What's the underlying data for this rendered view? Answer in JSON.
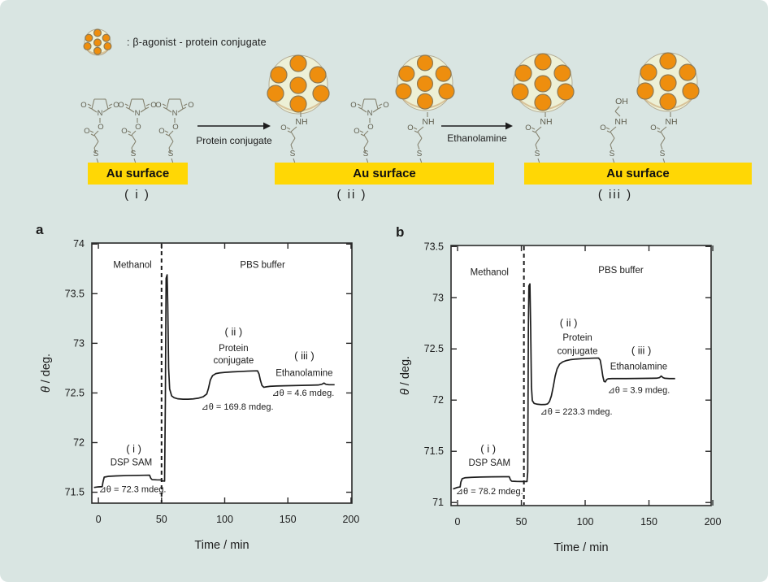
{
  "colors": {
    "background": "#d9e5e2",
    "au_surface": "#ffd705",
    "protein_dot": "#ee8e0e",
    "protein_blob": "#edf0d6",
    "curve": "#1c1c1c"
  },
  "scheme": {
    "legend": {
      "label": ": β-agonist - protein conjugate",
      "icon": "protein-conjugate-cluster-icon"
    },
    "arrows": [
      {
        "label": "Protein conjugate"
      },
      {
        "label": "Ethanolamine"
      }
    ],
    "stages": [
      {
        "id": "i",
        "caption": "( i )",
        "surface_label": "Au surface"
      },
      {
        "id": "ii",
        "caption": "( ii )",
        "surface_label": "Au surface"
      },
      {
        "id": "iii",
        "caption": "( iii )",
        "surface_label": "Au surface"
      }
    ],
    "atom_labels": {
      "oxygen": "O",
      "nitrogen": "N",
      "sulfur": "S",
      "amide": "NH",
      "hydroxyl": "OH"
    }
  },
  "chart_data": [
    {
      "type": "line",
      "panel": "a",
      "xlabel": "Time / min",
      "ylabel": "θ / deg.",
      "xlim": [
        -5.2,
        200.7
      ],
      "ylim": [
        71.39,
        74.01
      ],
      "xticks": [
        0,
        50,
        100,
        150,
        200
      ],
      "xtick_labels": [
        "0",
        "50",
        "100",
        "150",
        "200"
      ],
      "yticks": [
        71.5,
        72,
        72.5,
        73,
        73.5,
        74
      ],
      "ytick_labels": [
        "71.5",
        "72",
        "72.5",
        "73",
        "73.5",
        "74"
      ],
      "grid": false,
      "vline_x": 50,
      "annotations": [
        {
          "text": "Methanol",
          "t": 27,
          "v": 73.76,
          "size": 11.5
        },
        {
          "text": "PBS buffer",
          "t": 130,
          "v": 73.76,
          "size": 11.5
        },
        {
          "text": "( ii )",
          "t": 107,
          "v": 73.08,
          "size": 13
        },
        {
          "text": "Protein",
          "t": 107,
          "v": 72.92,
          "size": 11.5
        },
        {
          "text": "conjugate",
          "t": 107,
          "v": 72.8,
          "size": 11.5
        },
        {
          "text": "( iii )",
          "t": 163,
          "v": 72.84,
          "size": 13
        },
        {
          "text": "Ethanolamine",
          "t": 163,
          "v": 72.67,
          "size": 11.5
        },
        {
          "text": "⊿θ = 4.6 mdeg.",
          "t": 162,
          "v": 72.47,
          "size": 11
        },
        {
          "text": "⊿θ = 169.8 mdeg.",
          "t": 110,
          "v": 72.33,
          "size": 11
        },
        {
          "text": "( i )",
          "t": 28,
          "v": 71.9,
          "size": 13
        },
        {
          "text": "DSP SAM",
          "t": 26,
          "v": 71.77,
          "size": 11.5
        },
        {
          "text": "⊿θ = 72.3 mdeg.",
          "t": 27,
          "v": 71.5,
          "size": 11
        }
      ],
      "points": [
        [
          -3.5,
          71.548
        ],
        [
          0,
          71.554
        ],
        [
          3,
          71.556
        ],
        [
          3.6,
          71.6
        ],
        [
          4.6,
          71.652
        ],
        [
          8,
          71.66
        ],
        [
          14,
          71.664
        ],
        [
          22,
          71.668
        ],
        [
          32,
          71.67
        ],
        [
          40.5,
          71.672
        ],
        [
          41.5,
          71.64
        ],
        [
          42.5,
          71.627
        ],
        [
          46,
          71.625
        ],
        [
          50,
          71.624
        ],
        [
          50.8,
          71.614
        ],
        [
          52.4,
          71.612
        ],
        [
          53,
          72.4
        ],
        [
          53.6,
          73.655
        ],
        [
          54.4,
          73.69
        ],
        [
          54.9,
          73.4
        ],
        [
          55.6,
          72.75
        ],
        [
          56.4,
          72.54
        ],
        [
          58,
          72.47
        ],
        [
          60,
          72.452
        ],
        [
          63,
          72.441
        ],
        [
          67,
          72.437
        ],
        [
          71,
          72.437
        ],
        [
          75,
          72.44
        ],
        [
          79,
          72.447
        ],
        [
          83,
          72.462
        ],
        [
          85.8,
          72.49
        ],
        [
          87.2,
          72.55
        ],
        [
          88.6,
          72.63
        ],
        [
          90.4,
          72.675
        ],
        [
          93,
          72.695
        ],
        [
          96,
          72.702
        ],
        [
          100,
          72.707
        ],
        [
          106,
          72.712
        ],
        [
          112,
          72.716
        ],
        [
          118,
          72.72
        ],
        [
          123,
          72.722
        ],
        [
          126,
          72.723
        ],
        [
          127.2,
          72.69
        ],
        [
          128.2,
          72.63
        ],
        [
          129.5,
          72.575
        ],
        [
          131,
          72.557
        ],
        [
          133,
          72.562
        ],
        [
          136,
          72.567
        ],
        [
          141,
          72.57
        ],
        [
          147,
          72.572
        ],
        [
          154,
          72.574
        ],
        [
          161,
          72.576
        ],
        [
          168,
          72.578
        ],
        [
          174,
          72.58
        ],
        [
          177,
          72.588
        ],
        [
          178.6,
          72.6
        ],
        [
          180,
          72.588
        ],
        [
          182.5,
          72.583
        ],
        [
          187,
          72.583
        ]
      ]
    },
    {
      "type": "line",
      "panel": "b",
      "xlabel": "Time / min",
      "ylabel": "θ / deg.",
      "xlim": [
        -5.1,
        198.7
      ],
      "ylim": [
        70.97,
        73.51
      ],
      "xticks": [
        0,
        50,
        100,
        150,
        200
      ],
      "xtick_labels": [
        "0",
        "50",
        "100",
        "150",
        "200"
      ],
      "yticks": [
        71,
        71.5,
        72,
        72.5,
        73,
        73.5
      ],
      "ytick_labels": [
        "71",
        "71.5",
        "72",
        "72.5",
        "73",
        "73.5"
      ],
      "grid": false,
      "vline_x": 52,
      "annotations": [
        {
          "text": "Methanol",
          "t": 25,
          "v": 73.22,
          "size": 11.5
        },
        {
          "text": "PBS buffer",
          "t": 128,
          "v": 73.24,
          "size": 11.5
        },
        {
          "text": "( ii )",
          "t": 87,
          "v": 72.72,
          "size": 13
        },
        {
          "text": "Protein",
          "t": 94,
          "v": 72.58,
          "size": 11.5
        },
        {
          "text": "conjugate",
          "t": 94,
          "v": 72.45,
          "size": 11.5
        },
        {
          "text": "( iii )",
          "t": 144,
          "v": 72.45,
          "size": 13
        },
        {
          "text": "Ethanolamine",
          "t": 142,
          "v": 72.3,
          "size": 11.5
        },
        {
          "text": "⊿θ = 3.9 mdeg.",
          "t": 142,
          "v": 72.07,
          "size": 11
        },
        {
          "text": "⊿θ = 223.3 mdeg.",
          "t": 93,
          "v": 71.86,
          "size": 11
        },
        {
          "text": "( i )",
          "t": 24,
          "v": 71.49,
          "size": 13
        },
        {
          "text": "DSP SAM",
          "t": 25,
          "v": 71.36,
          "size": 11.5
        },
        {
          "text": "⊿θ = 78.2 mdeg.",
          "t": 25,
          "v": 71.08,
          "size": 11
        }
      ],
      "points": [
        [
          -3.5,
          71.132
        ],
        [
          0,
          71.148
        ],
        [
          2,
          71.152
        ],
        [
          2.6,
          71.2
        ],
        [
          3.6,
          71.232
        ],
        [
          6,
          71.242
        ],
        [
          11,
          71.246
        ],
        [
          18,
          71.249
        ],
        [
          27,
          71.251
        ],
        [
          36,
          71.252
        ],
        [
          40.5,
          71.252
        ],
        [
          41.5,
          71.22
        ],
        [
          42.5,
          71.208
        ],
        [
          46,
          71.206
        ],
        [
          50,
          71.205
        ],
        [
          54.4,
          71.205
        ],
        [
          55,
          71.3
        ],
        [
          55.5,
          72.7
        ],
        [
          55.9,
          73.115
        ],
        [
          56.7,
          73.135
        ],
        [
          57.3,
          72.7
        ],
        [
          57.9,
          72.13
        ],
        [
          58.6,
          71.995
        ],
        [
          60,
          71.968
        ],
        [
          62.5,
          71.96
        ],
        [
          65.5,
          71.956
        ],
        [
          68.5,
          71.957
        ],
        [
          70.5,
          71.963
        ],
        [
          72,
          71.985
        ],
        [
          73.5,
          72.04
        ],
        [
          75,
          72.13
        ],
        [
          76.5,
          72.235
        ],
        [
          78,
          72.305
        ],
        [
          80,
          72.352
        ],
        [
          82.5,
          72.374
        ],
        [
          85.5,
          72.387
        ],
        [
          89,
          72.396
        ],
        [
          93,
          72.401
        ],
        [
          98,
          72.405
        ],
        [
          103,
          72.408
        ],
        [
          107,
          72.41
        ],
        [
          110.5,
          72.411
        ],
        [
          111.8,
          72.39
        ],
        [
          112.8,
          72.32
        ],
        [
          113.8,
          72.235
        ],
        [
          114.8,
          72.183
        ],
        [
          115.8,
          72.178
        ],
        [
          116.8,
          72.2
        ],
        [
          118,
          72.208
        ],
        [
          121,
          72.21
        ],
        [
          126,
          72.21
        ],
        [
          132,
          72.21
        ],
        [
          139,
          72.211
        ],
        [
          146,
          72.212
        ],
        [
          152,
          72.213
        ],
        [
          156,
          72.214
        ],
        [
          158.3,
          72.22
        ],
        [
          159.6,
          72.235
        ],
        [
          161,
          72.22
        ],
        [
          162.5,
          72.213
        ],
        [
          166,
          72.21
        ],
        [
          170.5,
          72.21
        ]
      ]
    }
  ]
}
